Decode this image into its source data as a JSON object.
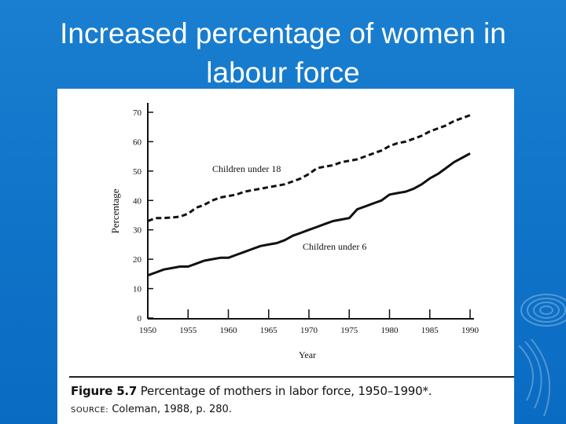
{
  "slide": {
    "title_line1": "Increased percentage of women in",
    "title_line2": "labour force"
  },
  "figure": {
    "caption_number": "Figure 5.7",
    "caption_text": "Percentage of mothers in labor force, 1950–1990*.",
    "source_label": "SOURCE:",
    "source_text": "Coleman, 1988, p. 280."
  },
  "chart_data": {
    "type": "line",
    "xlabel": "Year",
    "ylabel": "Percentage",
    "xlim": [
      1950,
      1990
    ],
    "ylim": [
      0,
      70
    ],
    "x_ticks": [
      "1950",
      "1955",
      "1960",
      "1965",
      "1970",
      "1975",
      "1980",
      "1985",
      "1990"
    ],
    "y_ticks": [
      "0",
      "10",
      "20",
      "30",
      "40",
      "50",
      "60",
      "70"
    ],
    "grid": false,
    "legend": "none (series labeled inline)",
    "series": [
      {
        "name": "Children under 18",
        "line_style": "dashed",
        "x": [
          1950,
          1951,
          1952,
          1953,
          1954,
          1955,
          1956,
          1957,
          1958,
          1959,
          1960,
          1961,
          1962,
          1963,
          1964,
          1965,
          1966,
          1967,
          1968,
          1969,
          1970,
          1971,
          1972,
          1973,
          1974,
          1975,
          1976,
          1977,
          1978,
          1979,
          1980,
          1981,
          1982,
          1983,
          1984,
          1985,
          1986,
          1987,
          1988,
          1989,
          1990
        ],
        "values": [
          33,
          34,
          34,
          34.2,
          34.5,
          35.5,
          37.5,
          38.5,
          40,
          41,
          41.5,
          42,
          43,
          43.5,
          44,
          44.5,
          45,
          45.5,
          46.5,
          47.5,
          49,
          51,
          51.5,
          52,
          53,
          53.5,
          54,
          55,
          56,
          57,
          58.5,
          59.5,
          60,
          61,
          62,
          63.5,
          64.5,
          65.5,
          67,
          68,
          69
        ]
      },
      {
        "name": "Children under 6",
        "line_style": "solid",
        "x": [
          1950,
          1951,
          1952,
          1953,
          1954,
          1955,
          1956,
          1957,
          1958,
          1959,
          1960,
          1961,
          1962,
          1963,
          1964,
          1965,
          1966,
          1967,
          1968,
          1969,
          1970,
          1971,
          1972,
          1973,
          1974,
          1975,
          1976,
          1977,
          1978,
          1979,
          1980,
          1981,
          1982,
          1983,
          1984,
          1985,
          1986,
          1987,
          1988,
          1989,
          1990
        ],
        "values": [
          14.5,
          15.5,
          16.5,
          17,
          17.5,
          17.5,
          18.5,
          19.5,
          20,
          20.5,
          20.5,
          21.5,
          22.5,
          23.5,
          24.5,
          25,
          25.5,
          26.5,
          28,
          29,
          30,
          31,
          32,
          33,
          33.5,
          34,
          37,
          38,
          39,
          40,
          42,
          42.5,
          43,
          44,
          45.5,
          47.5,
          49,
          51,
          53,
          54.5,
          56
        ]
      }
    ]
  }
}
